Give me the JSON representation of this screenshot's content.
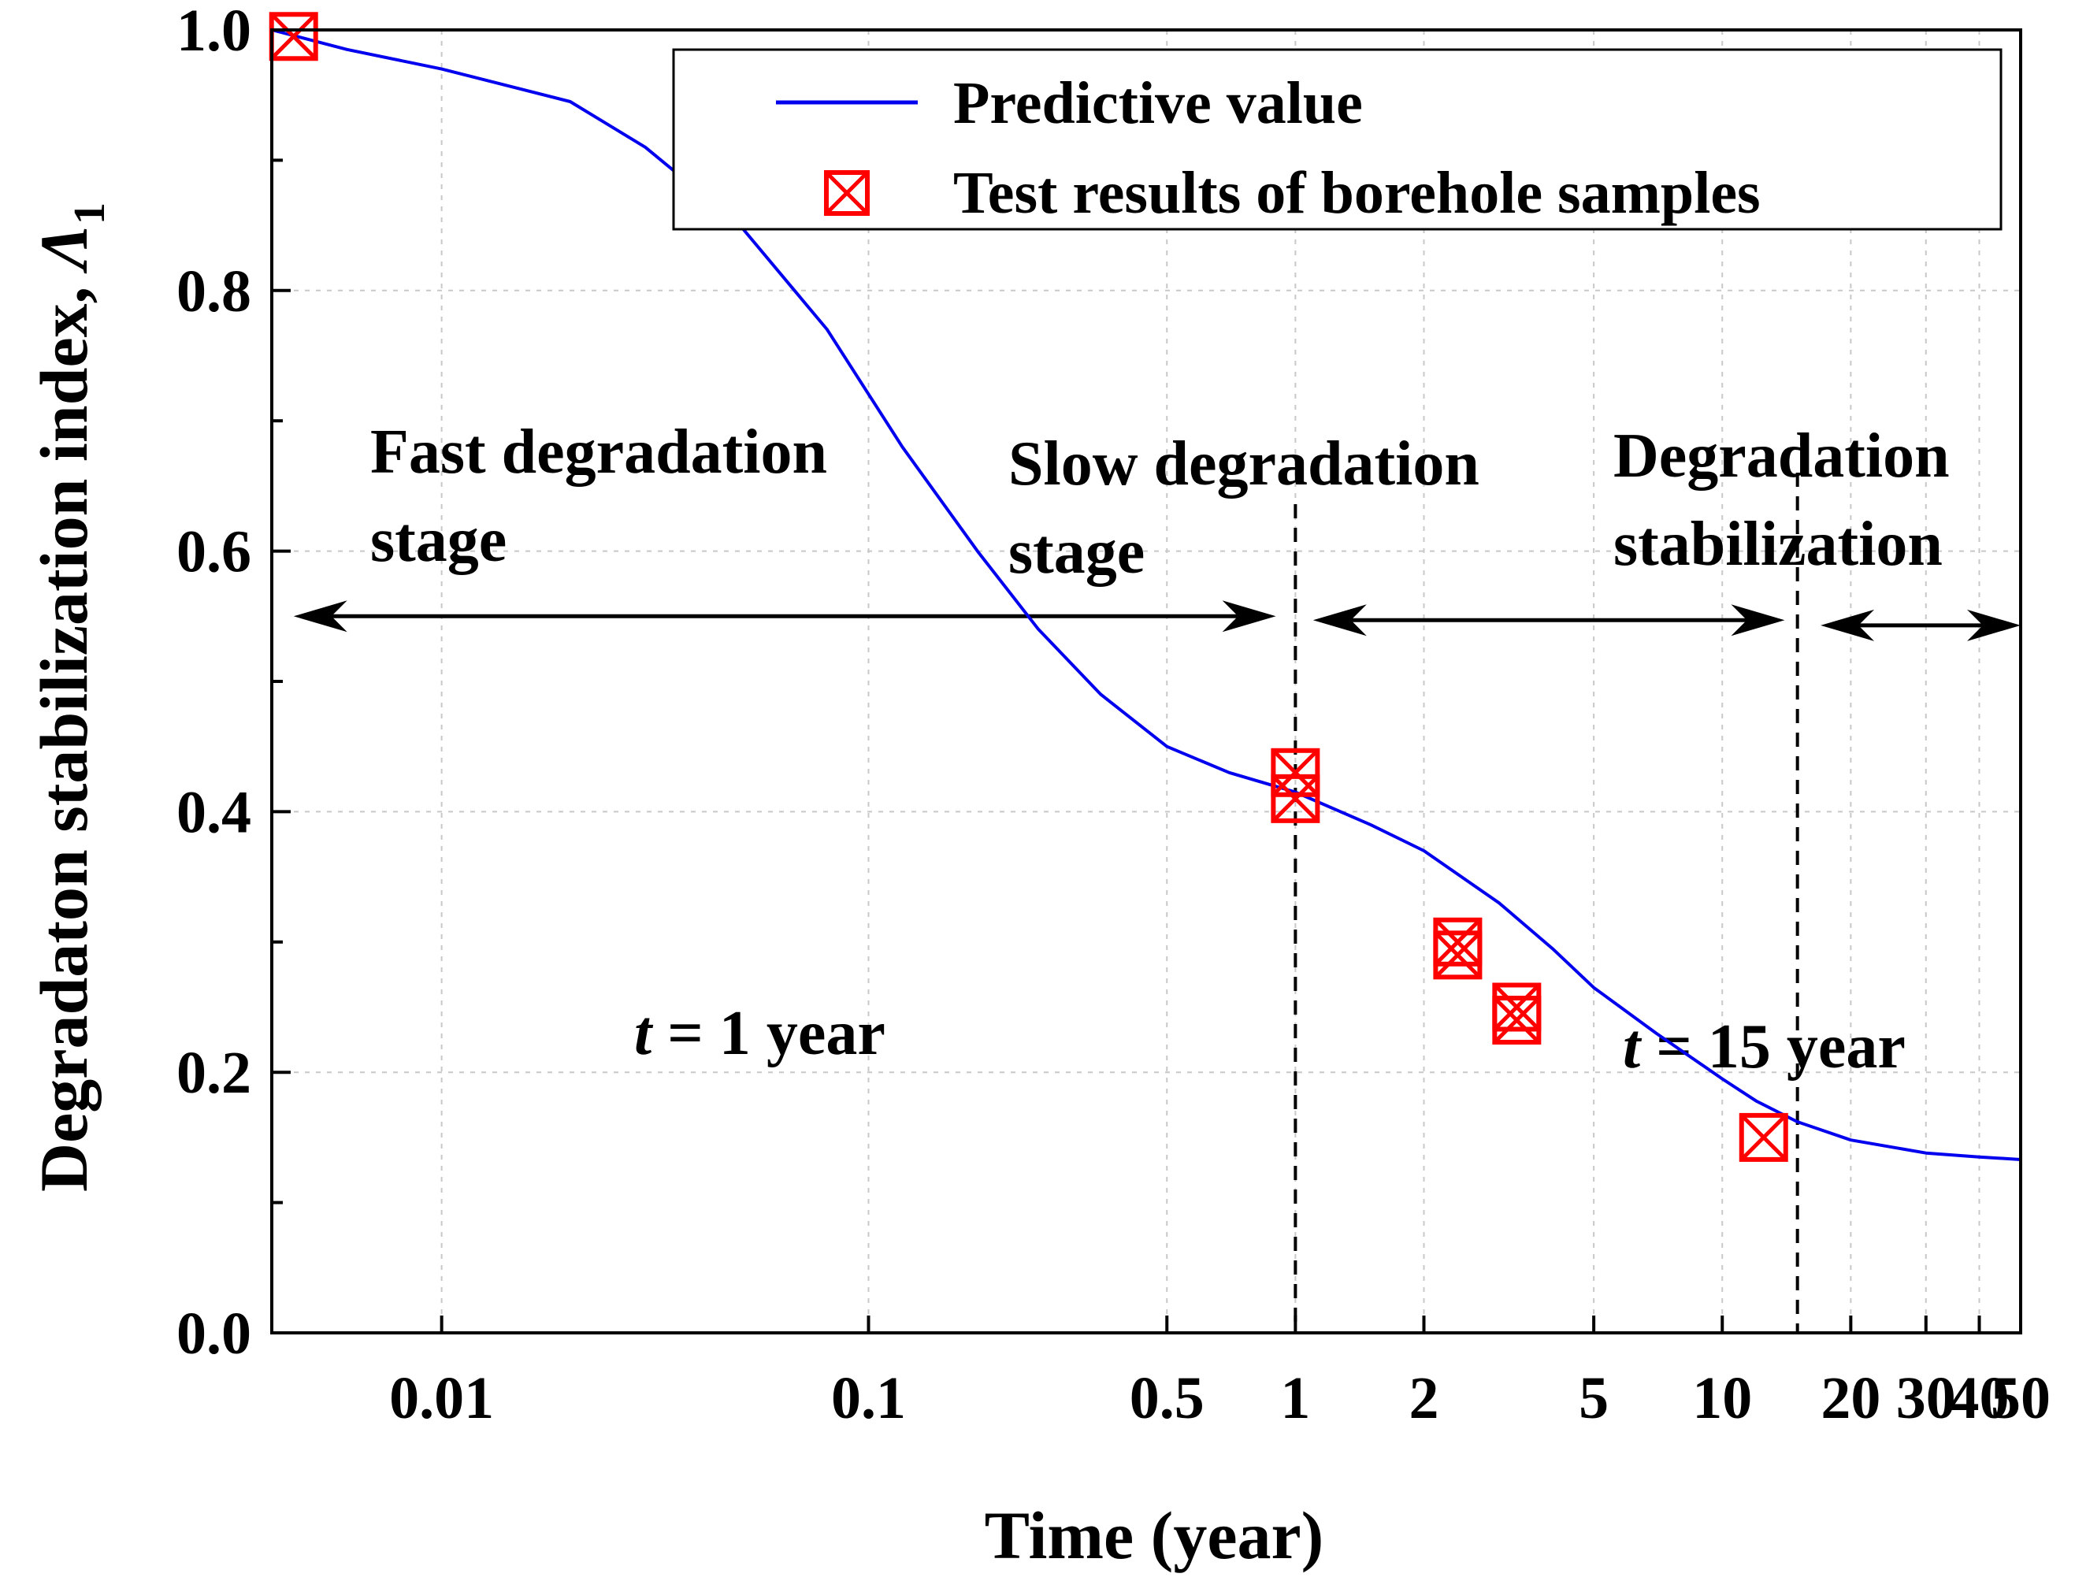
{
  "chart_data": {
    "type": "line",
    "title": "",
    "xlabel": "Time (year)",
    "ylabel": "Degradaton stabilization index, ",
    "ylabel_symbol": "Λ",
    "ylabel_subscript": "1",
    "x_scale": "log",
    "xlim": [
      0.004,
      50
    ],
    "ylim": [
      0.0,
      1.0
    ],
    "grid": true,
    "legend_position": "top-right",
    "x_ticks": [
      {
        "value": 0.01,
        "label": "0.01"
      },
      {
        "value": 0.1,
        "label": "0.1"
      },
      {
        "value": 0.5,
        "label": "0.5"
      },
      {
        "value": 1,
        "label": "1"
      },
      {
        "value": 2,
        "label": "2"
      },
      {
        "value": 5,
        "label": "5"
      },
      {
        "value": 10,
        "label": "10"
      },
      {
        "value": 20,
        "label": "20"
      },
      {
        "value": 30,
        "label": "30"
      },
      {
        "value": 40,
        "label": "40"
      },
      {
        "value": 50,
        "label": "50"
      }
    ],
    "y_ticks": [
      {
        "value": 0.0,
        "label": "0.0"
      },
      {
        "value": 0.2,
        "label": "0.2"
      },
      {
        "value": 0.4,
        "label": "0.4"
      },
      {
        "value": 0.6,
        "label": "0.6"
      },
      {
        "value": 0.8,
        "label": "0.8"
      },
      {
        "value": 1.0,
        "label": "1.0"
      }
    ],
    "series": [
      {
        "name": "Predictive value",
        "kind": "line",
        "color": "#0000ee",
        "x": [
          0.004,
          0.006,
          0.01,
          0.02,
          0.03,
          0.05,
          0.08,
          0.12,
          0.18,
          0.25,
          0.35,
          0.5,
          0.7,
          1.0,
          1.5,
          2.0,
          3.0,
          4.0,
          5.0,
          7.0,
          10.0,
          12.0,
          15.0,
          20.0,
          30.0,
          40.0,
          50.0
        ],
        "y": [
          1.0,
          0.985,
          0.97,
          0.945,
          0.91,
          0.85,
          0.77,
          0.68,
          0.6,
          0.54,
          0.49,
          0.45,
          0.43,
          0.415,
          0.39,
          0.37,
          0.33,
          0.295,
          0.265,
          0.23,
          0.195,
          0.178,
          0.162,
          0.148,
          0.138,
          0.135,
          0.133
        ]
      },
      {
        "name": "Test results of borehole samples",
        "kind": "scatter",
        "color": "#ff0000",
        "marker": "square-x",
        "x": [
          0.0045,
          1.0,
          1.0,
          2.4,
          2.4,
          3.3,
          3.3,
          12.5
        ],
        "y": [
          0.995,
          0.43,
          0.41,
          0.3,
          0.29,
          0.25,
          0.24,
          0.15
        ]
      }
    ],
    "stage_boundaries": [
      {
        "x": 1.0,
        "label_prefix": "t",
        "label_rest": " = 1 year"
      },
      {
        "x": 15.0,
        "label_prefix": "t",
        "label_rest": " = 15 year"
      }
    ],
    "stages": [
      {
        "line1": "Fast degradation",
        "line2": "stage",
        "x_from": 0.0045,
        "x_to": 0.9,
        "y": 0.55
      },
      {
        "line1": "Slow degradation",
        "line2": "stage",
        "x_from": 1.1,
        "x_to": 14.0,
        "y": 0.547
      },
      {
        "line1": "Degradation",
        "line2": "stabilization",
        "x_from": 17.0,
        "x_to": 50.0,
        "y": 0.543
      }
    ]
  }
}
